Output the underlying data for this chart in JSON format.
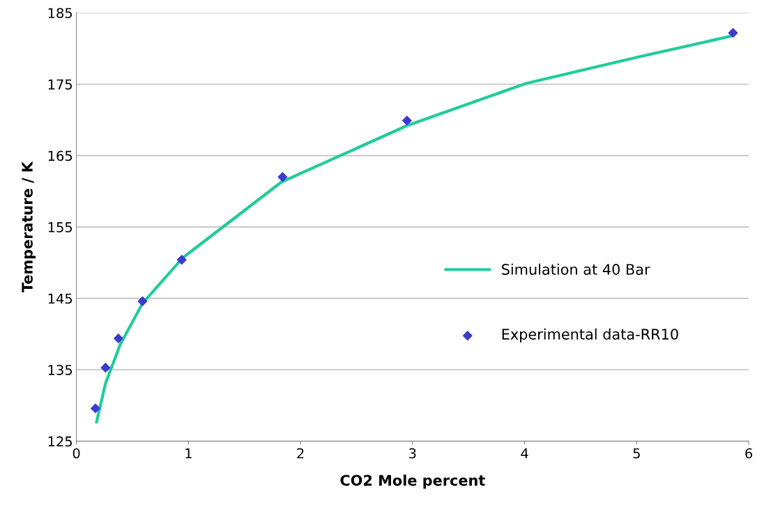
{
  "chart_data": {
    "type": "line",
    "xlabel": "CO2 Mole percent",
    "ylabel": "Temperature / K",
    "xlim": [
      0,
      6
    ],
    "xticks": [
      0,
      1,
      2,
      3,
      4,
      5,
      6
    ],
    "ylim": [
      125,
      185
    ],
    "yticks": [
      125,
      135,
      145,
      155,
      165,
      175,
      185
    ],
    "grid": "y",
    "legend": "right",
    "series": [
      {
        "name": "Simulation at 40 Bar",
        "color": "#1fcc9a",
        "marker": "none",
        "line_style": "solid",
        "x": [
          0.18,
          0.26,
          0.39,
          0.59,
          0.95,
          1.83,
          2.95,
          4.01,
          5.01,
          5.86
        ],
        "values": [
          127.7,
          133.1,
          138.5,
          144.3,
          150.7,
          161.3,
          169.2,
          175.1,
          178.8,
          181.8
        ]
      },
      {
        "name": "Experimental data-RR10",
        "type": "scatter",
        "color": "#3b3bd0",
        "marker": "diamond",
        "x": [
          0.17,
          0.26,
          0.375,
          0.59,
          0.94,
          1.84,
          2.95,
          5.86
        ],
        "values": [
          129.6,
          135.3,
          139.4,
          144.6,
          150.4,
          162.0,
          169.9,
          182.2
        ]
      }
    ]
  }
}
